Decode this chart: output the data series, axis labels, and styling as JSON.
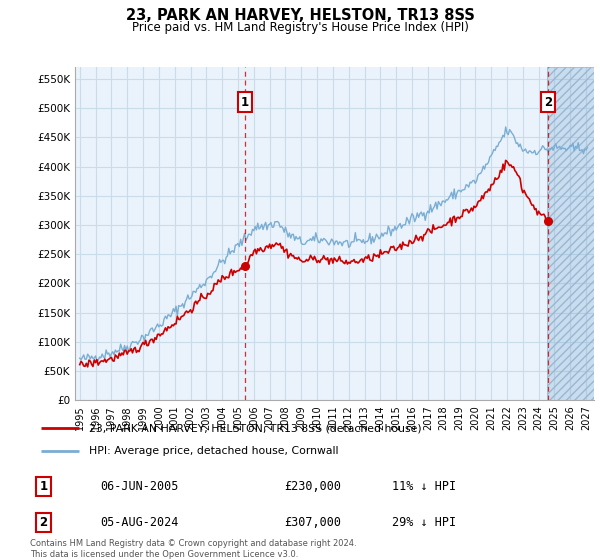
{
  "title": "23, PARK AN HARVEY, HELSTON, TR13 8SS",
  "subtitle": "Price paid vs. HM Land Registry's House Price Index (HPI)",
  "ylabel_ticks": [
    0,
    50000,
    100000,
    150000,
    200000,
    250000,
    300000,
    350000,
    400000,
    450000,
    500000,
    550000
  ],
  "ylabel_labels": [
    "£0",
    "£50K",
    "£100K",
    "£150K",
    "£200K",
    "£250K",
    "£300K",
    "£350K",
    "£400K",
    "£450K",
    "£500K",
    "£550K"
  ],
  "ylim": [
    0,
    570000
  ],
  "xlim_start": 1994.7,
  "xlim_end": 2027.5,
  "xtick_labels": [
    "1995",
    "1996",
    "1997",
    "1998",
    "1999",
    "2000",
    "2001",
    "2002",
    "2003",
    "2004",
    "2005",
    "2006",
    "2007",
    "2008",
    "2009",
    "2010",
    "2011",
    "2012",
    "2013",
    "2014",
    "2015",
    "2016",
    "2017",
    "2018",
    "2019",
    "2020",
    "2021",
    "2022",
    "2023",
    "2024",
    "2025",
    "2026",
    "2027"
  ],
  "sale1_x": 2005.44,
  "sale1_y": 230000,
  "sale1_label": "1",
  "sale2_x": 2024.59,
  "sale2_y": 307000,
  "sale2_label": "2",
  "marker_y": 510000,
  "legend_line1": "23, PARK AN HARVEY, HELSTON, TR13 8SS (detached house)",
  "legend_line2": "HPI: Average price, detached house, Cornwall",
  "table_row1": [
    "1",
    "06-JUN-2005",
    "£230,000",
    "11% ↓ HPI"
  ],
  "table_row2": [
    "2",
    "05-AUG-2024",
    "£307,000",
    "29% ↓ HPI"
  ],
  "footnote": "Contains HM Land Registry data © Crown copyright and database right 2024.\nThis data is licensed under the Open Government Licence v3.0.",
  "line_red_color": "#cc0000",
  "line_blue_color": "#7aadd4",
  "chart_bg_color": "#eaf3fb",
  "bg_color": "#ffffff",
  "grid_color": "#c8dcea",
  "hatch_start": 2024.5
}
